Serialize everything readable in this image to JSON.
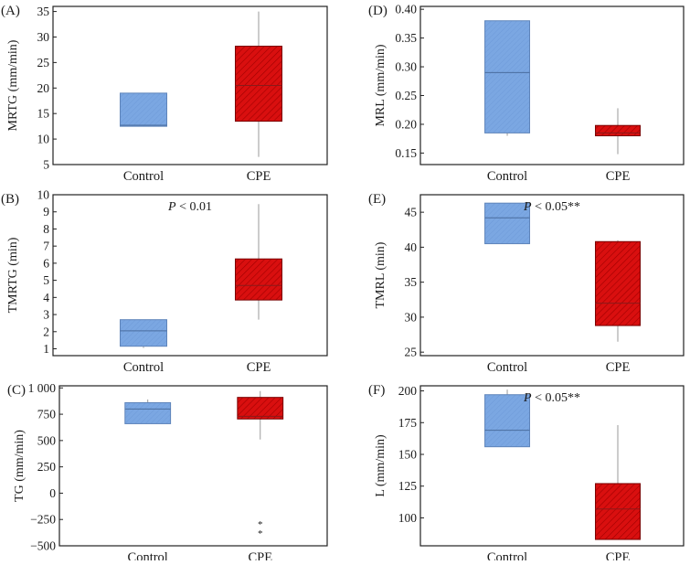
{
  "chart_data": [
    {
      "type": "box",
      "panel": "(A)",
      "ylabel": "MRTG (mm/min)",
      "ylim": [
        5,
        36
      ],
      "yticks": [
        5,
        10,
        15,
        20,
        25,
        30,
        35
      ],
      "categories": [
        "Control",
        "CPE"
      ],
      "annotation": "",
      "boxes": [
        {
          "label": "Control",
          "min": 12.5,
          "q1": 12.5,
          "median": 12.7,
          "q3": 19.0,
          "max": 19.0,
          "outliers": [],
          "color": "#7ba7e2"
        },
        {
          "label": "CPE",
          "min": 6.5,
          "q1": 13.5,
          "median": 20.5,
          "q3": 28.2,
          "max": 35.0,
          "outliers": [],
          "color": "#d90f0f"
        }
      ]
    },
    {
      "type": "box",
      "panel": "(D)",
      "ylabel": "MRL (mm/min)",
      "ylim": [
        0.13,
        0.405
      ],
      "yticks": [
        0.15,
        0.2,
        0.25,
        0.3,
        0.35,
        0.4
      ],
      "ytick_labels": [
        "0.15",
        "0.20",
        "0.25",
        "0.30",
        "0.35",
        "0.40"
      ],
      "categories": [
        "Control",
        "CPE"
      ],
      "annotation": "",
      "boxes": [
        {
          "label": "Control",
          "min": 0.18,
          "q1": 0.185,
          "median": 0.29,
          "q3": 0.38,
          "max": 0.38,
          "outliers": [],
          "color": "#7ba7e2"
        },
        {
          "label": "CPE",
          "min": 0.148,
          "q1": 0.18,
          "median": 0.185,
          "q3": 0.198,
          "max": 0.228,
          "outliers": [],
          "color": "#d90f0f"
        }
      ]
    },
    {
      "type": "box",
      "panel": "(B)",
      "ylabel": "TMRTG (min)",
      "ylim": [
        0.6,
        10
      ],
      "yticks": [
        1,
        2,
        3,
        4,
        5,
        6,
        7,
        8,
        9,
        10
      ],
      "categories": [
        "Control",
        "CPE"
      ],
      "annotation": "P < 0.01",
      "annotation_italic": "P",
      "annotation_rest": " < 0.01",
      "boxes": [
        {
          "label": "Control",
          "min": 1.05,
          "q1": 1.15,
          "median": 2.05,
          "q3": 2.7,
          "max": 2.7,
          "outliers": [],
          "color": "#7ba7e2"
        },
        {
          "label": "CPE",
          "min": 2.7,
          "q1": 3.85,
          "median": 4.7,
          "q3": 6.25,
          "max": 9.45,
          "outliers": [],
          "color": "#d90f0f"
        }
      ]
    },
    {
      "type": "box",
      "panel": "(E)",
      "ylabel": "TMRL (min)",
      "ylim": [
        24.5,
        47.5
      ],
      "yticks": [
        25,
        30,
        35,
        40,
        45
      ],
      "categories": [
        "Control",
        "CPE"
      ],
      "annotation": "P < 0.05**",
      "annotation_italic": "P",
      "annotation_rest": " < 0.05**",
      "boxes": [
        {
          "label": "Control",
          "min": 40.5,
          "q1": 40.5,
          "median": 44.2,
          "q3": 46.3,
          "max": 46.3,
          "outliers": [],
          "color": "#7ba7e2"
        },
        {
          "label": "CPE",
          "min": 26.5,
          "q1": 28.8,
          "median": 32.0,
          "q3": 40.8,
          "max": 41.0,
          "outliers": [],
          "color": "#d90f0f"
        }
      ]
    },
    {
      "type": "box",
      "panel": "(C)",
      "ylabel": "TG (mm/min)",
      "ylim": [
        -500,
        1020
      ],
      "yticks": [
        -500,
        -250,
        0,
        250,
        500,
        750,
        1000
      ],
      "ytick_labels": [
        "−500",
        "−250",
        "0",
        "250",
        "500",
        "750",
        "1 000"
      ],
      "categories": [
        "Control",
        "CPE"
      ],
      "annotation": "",
      "boxes": [
        {
          "label": "Control",
          "min": 660,
          "q1": 660,
          "median": 800,
          "q3": 860,
          "max": 890,
          "outliers": [],
          "color": "#7ba7e2"
        },
        {
          "label": "CPE",
          "min": 510,
          "q1": 705,
          "median": 730,
          "q3": 910,
          "max": 970,
          "outliers": [
            -290,
            -380
          ],
          "color": "#d90f0f"
        }
      ]
    },
    {
      "type": "box",
      "panel": "(F)",
      "ylabel": "L (mm/min)",
      "ylim": [
        78,
        204
      ],
      "yticks": [
        100,
        125,
        150,
        175,
        200
      ],
      "categories": [
        "Control",
        "CPE"
      ],
      "annotation": "P < 0.05**",
      "annotation_italic": "P",
      "annotation_rest": " < 0.05**",
      "boxes": [
        {
          "label": "Control",
          "min": 156,
          "q1": 156,
          "median": 169,
          "q3": 197,
          "max": 201,
          "outliers": [],
          "color": "#7ba7e2"
        },
        {
          "label": "CPE",
          "min": 83,
          "q1": 83,
          "median": 107,
          "q3": 127,
          "max": 173,
          "outliers": [],
          "color": "#d90f0f"
        }
      ]
    }
  ]
}
